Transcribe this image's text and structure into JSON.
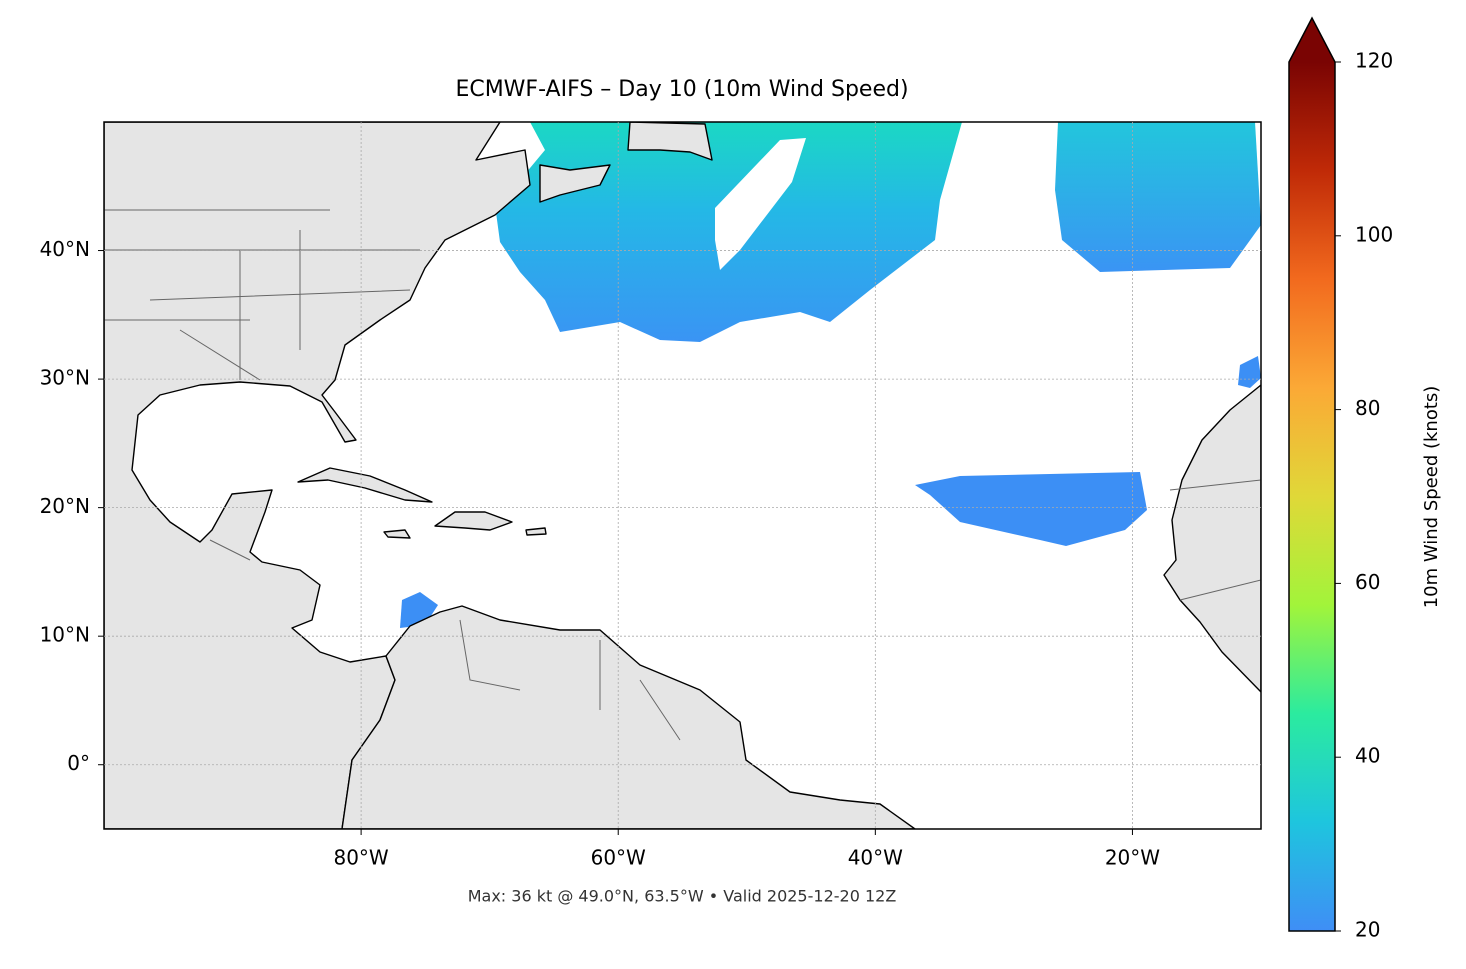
{
  "chart_data": {
    "type": "map",
    "title": "ECMWF-AIFS – Day 10 (10m Wind Speed)",
    "footer": "Max: 36 kt @ 49.0°N, 63.5°W • Valid 2025-12-20 12Z",
    "xlim": [
      -100,
      -10
    ],
    "ylim": [
      -5,
      50
    ],
    "xticks": [
      {
        "value": -80,
        "label": "80°W"
      },
      {
        "value": -60,
        "label": "60°W"
      },
      {
        "value": -40,
        "label": "40°W"
      },
      {
        "value": -20,
        "label": "20°W"
      }
    ],
    "yticks": [
      {
        "value": 0,
        "label": "0°"
      },
      {
        "value": 10,
        "label": "10°N"
      },
      {
        "value": 20,
        "label": "20°N"
      },
      {
        "value": 30,
        "label": "30°N"
      },
      {
        "value": 40,
        "label": "40°N"
      }
    ],
    "grid": true,
    "colorbar": {
      "label": "10m Wind Speed (knots)",
      "lim": [
        20,
        120
      ],
      "ticks": [
        20,
        40,
        60,
        80,
        100,
        120
      ],
      "extend": "max",
      "colormap": [
        "#3f8ef6",
        "#1ec5de",
        "#2beb9f",
        "#a2f43a",
        "#e0d838",
        "#fba936",
        "#f26a1e",
        "#c02a07",
        "#7a0403"
      ]
    }
  }
}
